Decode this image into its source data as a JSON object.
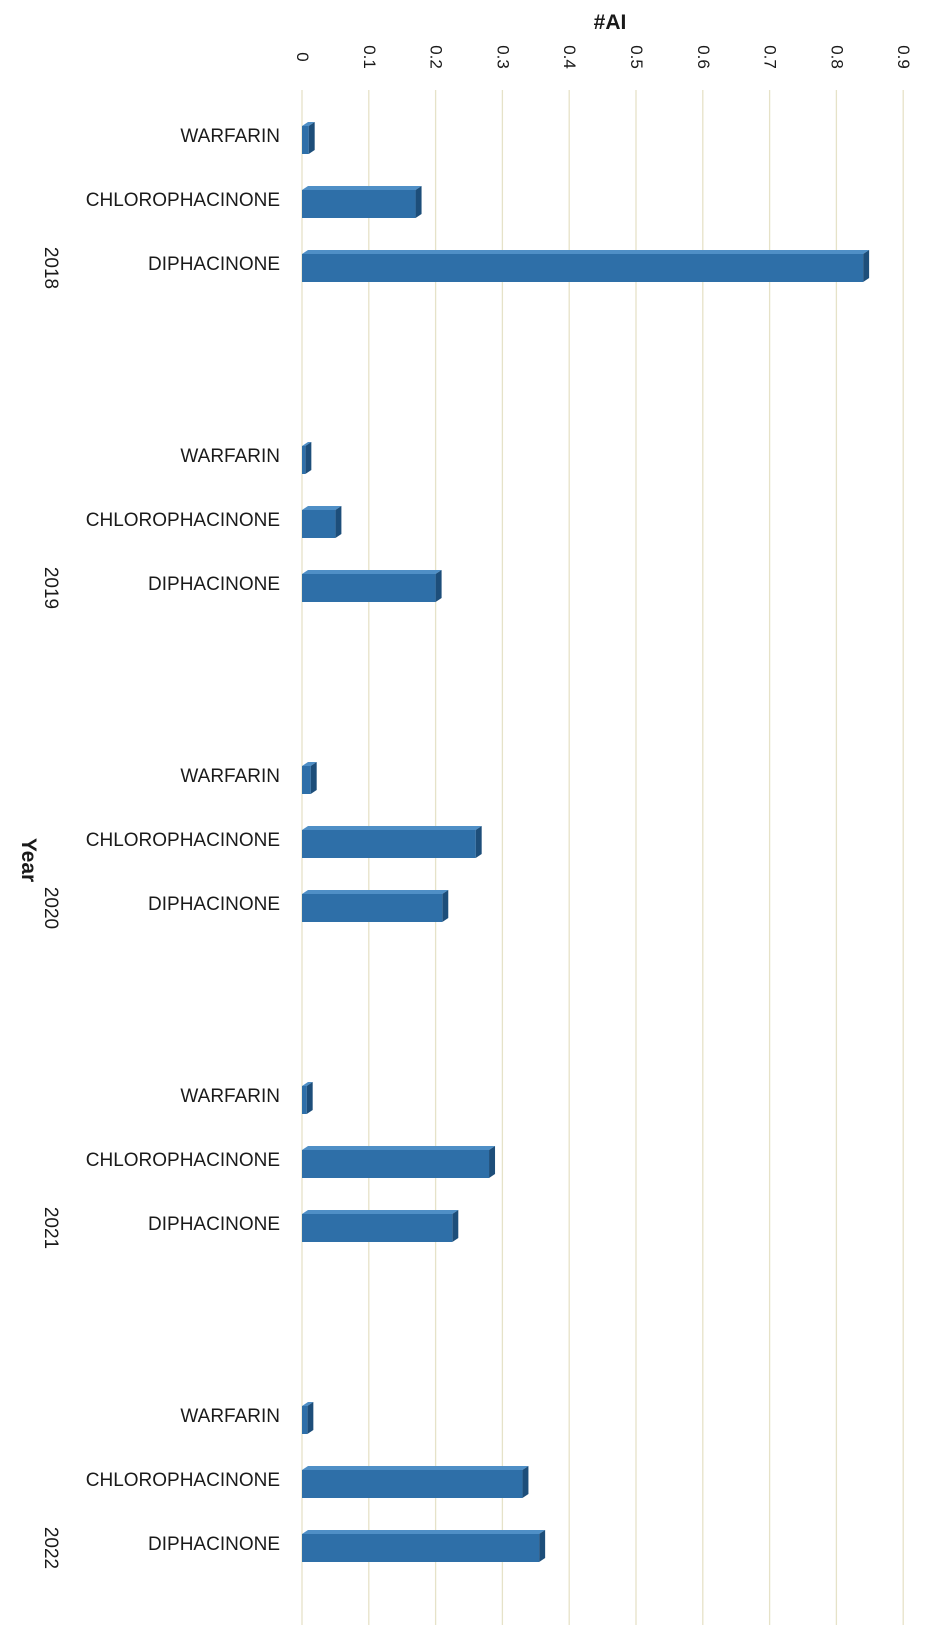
{
  "chart_data": {
    "type": "bar",
    "orientation": "horizontal",
    "style": "3d",
    "title": "",
    "xlabel": "#AI",
    "ylabel": "Year",
    "xlim": [
      0,
      0.9
    ],
    "x_ticks": [
      "0",
      "0.1",
      "0.2",
      "0.3",
      "0.4",
      "0.5",
      "0.6",
      "0.7",
      "0.8",
      "0.9"
    ],
    "tick_values": [
      0,
      0.1,
      0.2,
      0.3,
      0.4,
      0.5,
      0.6,
      0.7,
      0.8,
      0.9
    ],
    "grid": true,
    "legend": "none",
    "bar_color": "#2e6fa8",
    "bar_top_color": "#4f8fc6",
    "bar_side_color": "#1d4e7a",
    "grid_color": "#e6e2c8",
    "groups": [
      {
        "year": "2018",
        "bars": [
          {
            "label": "WARFARIN",
            "value": 0.01
          },
          {
            "label": "CHLOROPHACINONE",
            "value": 0.17
          },
          {
            "label": "DIPHACINONE",
            "value": 0.84
          }
        ]
      },
      {
        "year": "2019",
        "bars": [
          {
            "label": "WARFARIN",
            "value": 0.005
          },
          {
            "label": "CHLOROPHACINONE",
            "value": 0.05
          },
          {
            "label": "DIPHACINONE",
            "value": 0.2
          }
        ]
      },
      {
        "year": "2020",
        "bars": [
          {
            "label": "WARFARIN",
            "value": 0.013
          },
          {
            "label": "CHLOROPHACINONE",
            "value": 0.26
          },
          {
            "label": "DIPHACINONE",
            "value": 0.21
          }
        ]
      },
      {
        "year": "2021",
        "bars": [
          {
            "label": "WARFARIN",
            "value": 0.007
          },
          {
            "label": "CHLOROPHACINONE",
            "value": 0.28
          },
          {
            "label": "DIPHACINONE",
            "value": 0.225
          }
        ]
      },
      {
        "year": "2022",
        "bars": [
          {
            "label": "WARFARIN",
            "value": 0.008
          },
          {
            "label": "CHLOROPHACINONE",
            "value": 0.33
          },
          {
            "label": "DIPHACINONE",
            "value": 0.355
          }
        ]
      }
    ]
  }
}
